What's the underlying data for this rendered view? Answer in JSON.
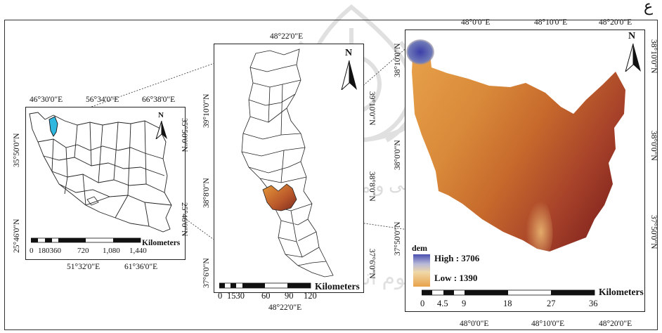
{
  "corner_glyph": "ع",
  "watermark": {
    "line1": "رپرتال جامع علوم انسانی",
    "line2": "کاه علوم انسانی و مطالعات فرسکی"
  },
  "panel1": {
    "top_coords": [
      "46°30'0\"E",
      "56°34'0\"E",
      "66°38'0\"E"
    ],
    "bottom_coords": [
      "51°32'0\"E",
      "61°36'0\"E"
    ],
    "left_coords": [
      "35°50'0\"N",
      "25°46'0\"N"
    ],
    "right_coords": [
      "35°50'0\"N",
      "25°46'0\"N"
    ],
    "north": "N",
    "scale_title": "Kilometers",
    "scale_ticks": [
      "0",
      "180360",
      "720",
      "1,080",
      "1,440"
    ],
    "highlight_color": "#2fb7e0"
  },
  "panel2": {
    "top_coords": [
      "48°22'0\"E"
    ],
    "bottom_coords": [
      "48°22'0\"E"
    ],
    "left_coords": [
      "39°10'0\"N",
      "38°8'0\"N",
      "37°6'0\"N"
    ],
    "right_coords": [
      "39°10'0\"N",
      "38°8'0\"N",
      "37°6'0\"N"
    ],
    "north": "N",
    "scale_title": "Kilometers",
    "scale_ticks": [
      "0",
      "1530",
      "60",
      "90",
      "120"
    ]
  },
  "panel3": {
    "top_coords": [
      "48°0'0\"E",
      "48°10'0\"E",
      "48°20'0\"E"
    ],
    "bottom_coords": [
      "48°0'0\"E",
      "48°10'0\"E",
      "48°20'0\"E"
    ],
    "left_coords": [
      "38°10'0\"N",
      "38°0'0\"N",
      "37°50'0\"N"
    ],
    "right_coords": [
      "38°10'0\"N",
      "38°0'0\"N",
      "37°50'0\"N"
    ],
    "north": "N",
    "scale_title": "Kilometers",
    "scale_ticks": [
      "0",
      "4.5",
      "9",
      "18",
      "27",
      "36"
    ],
    "legend": {
      "title": "dem",
      "high": "High : 3706",
      "low": "Low : 1390",
      "high_color": "#4a4fb0",
      "low_color": "#e8a24a"
    }
  }
}
